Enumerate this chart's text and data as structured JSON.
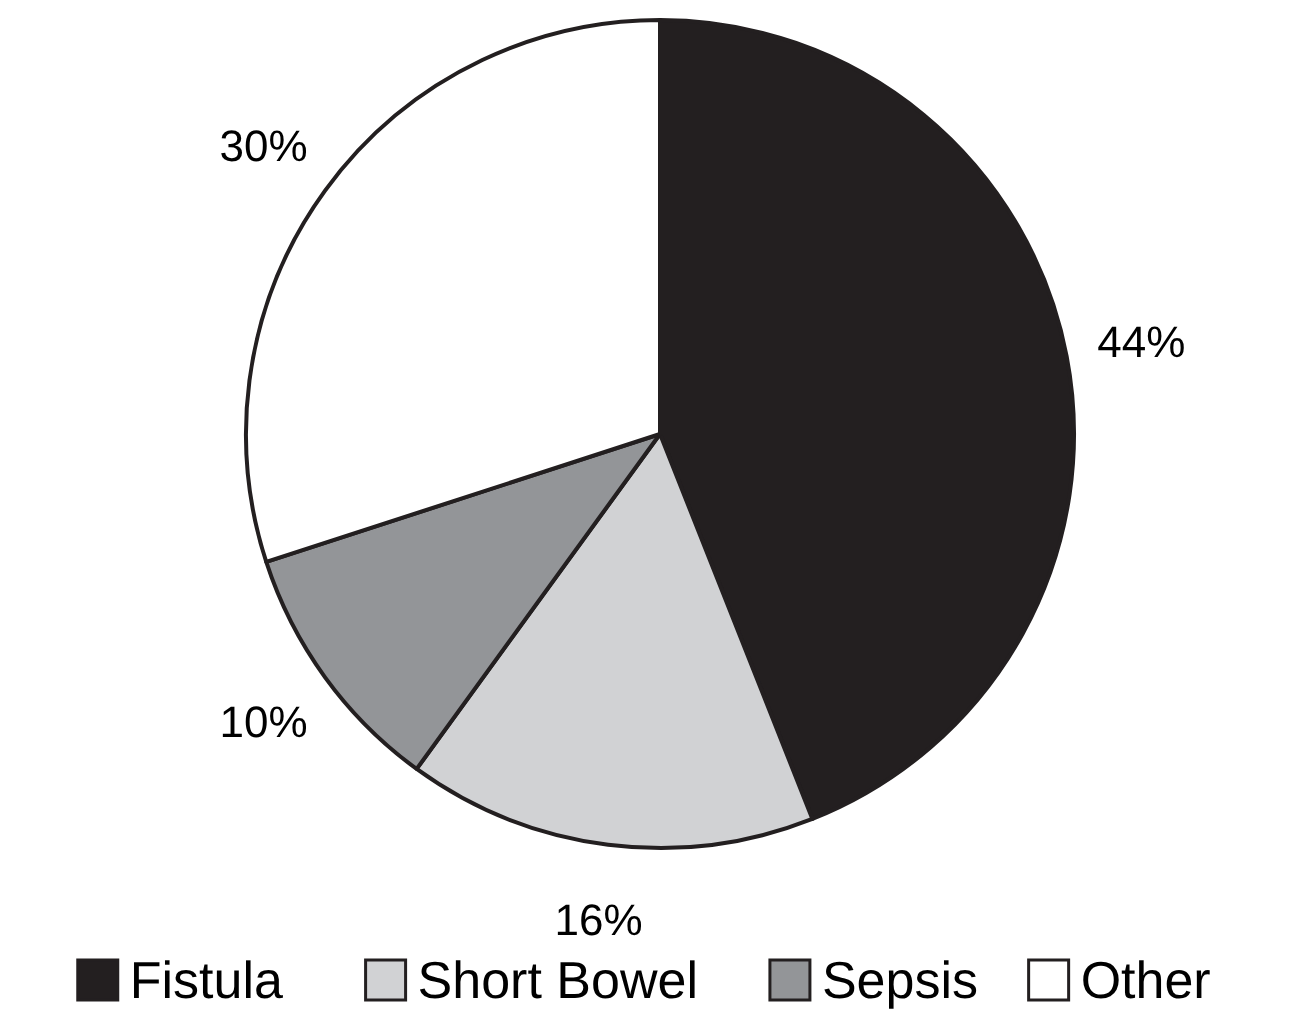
{
  "chart_data": {
    "type": "pie",
    "categories": [
      "Fistula",
      "Short Bowel",
      "Sepsis",
      "Other"
    ],
    "values": [
      44,
      16,
      10,
      30
    ],
    "colors": [
      "#231f20",
      "#d1d2d4",
      "#939598",
      "#ffffff"
    ],
    "value_labels": [
      "44%",
      "16%",
      "10%",
      "30%"
    ],
    "legend": "bottom"
  }
}
